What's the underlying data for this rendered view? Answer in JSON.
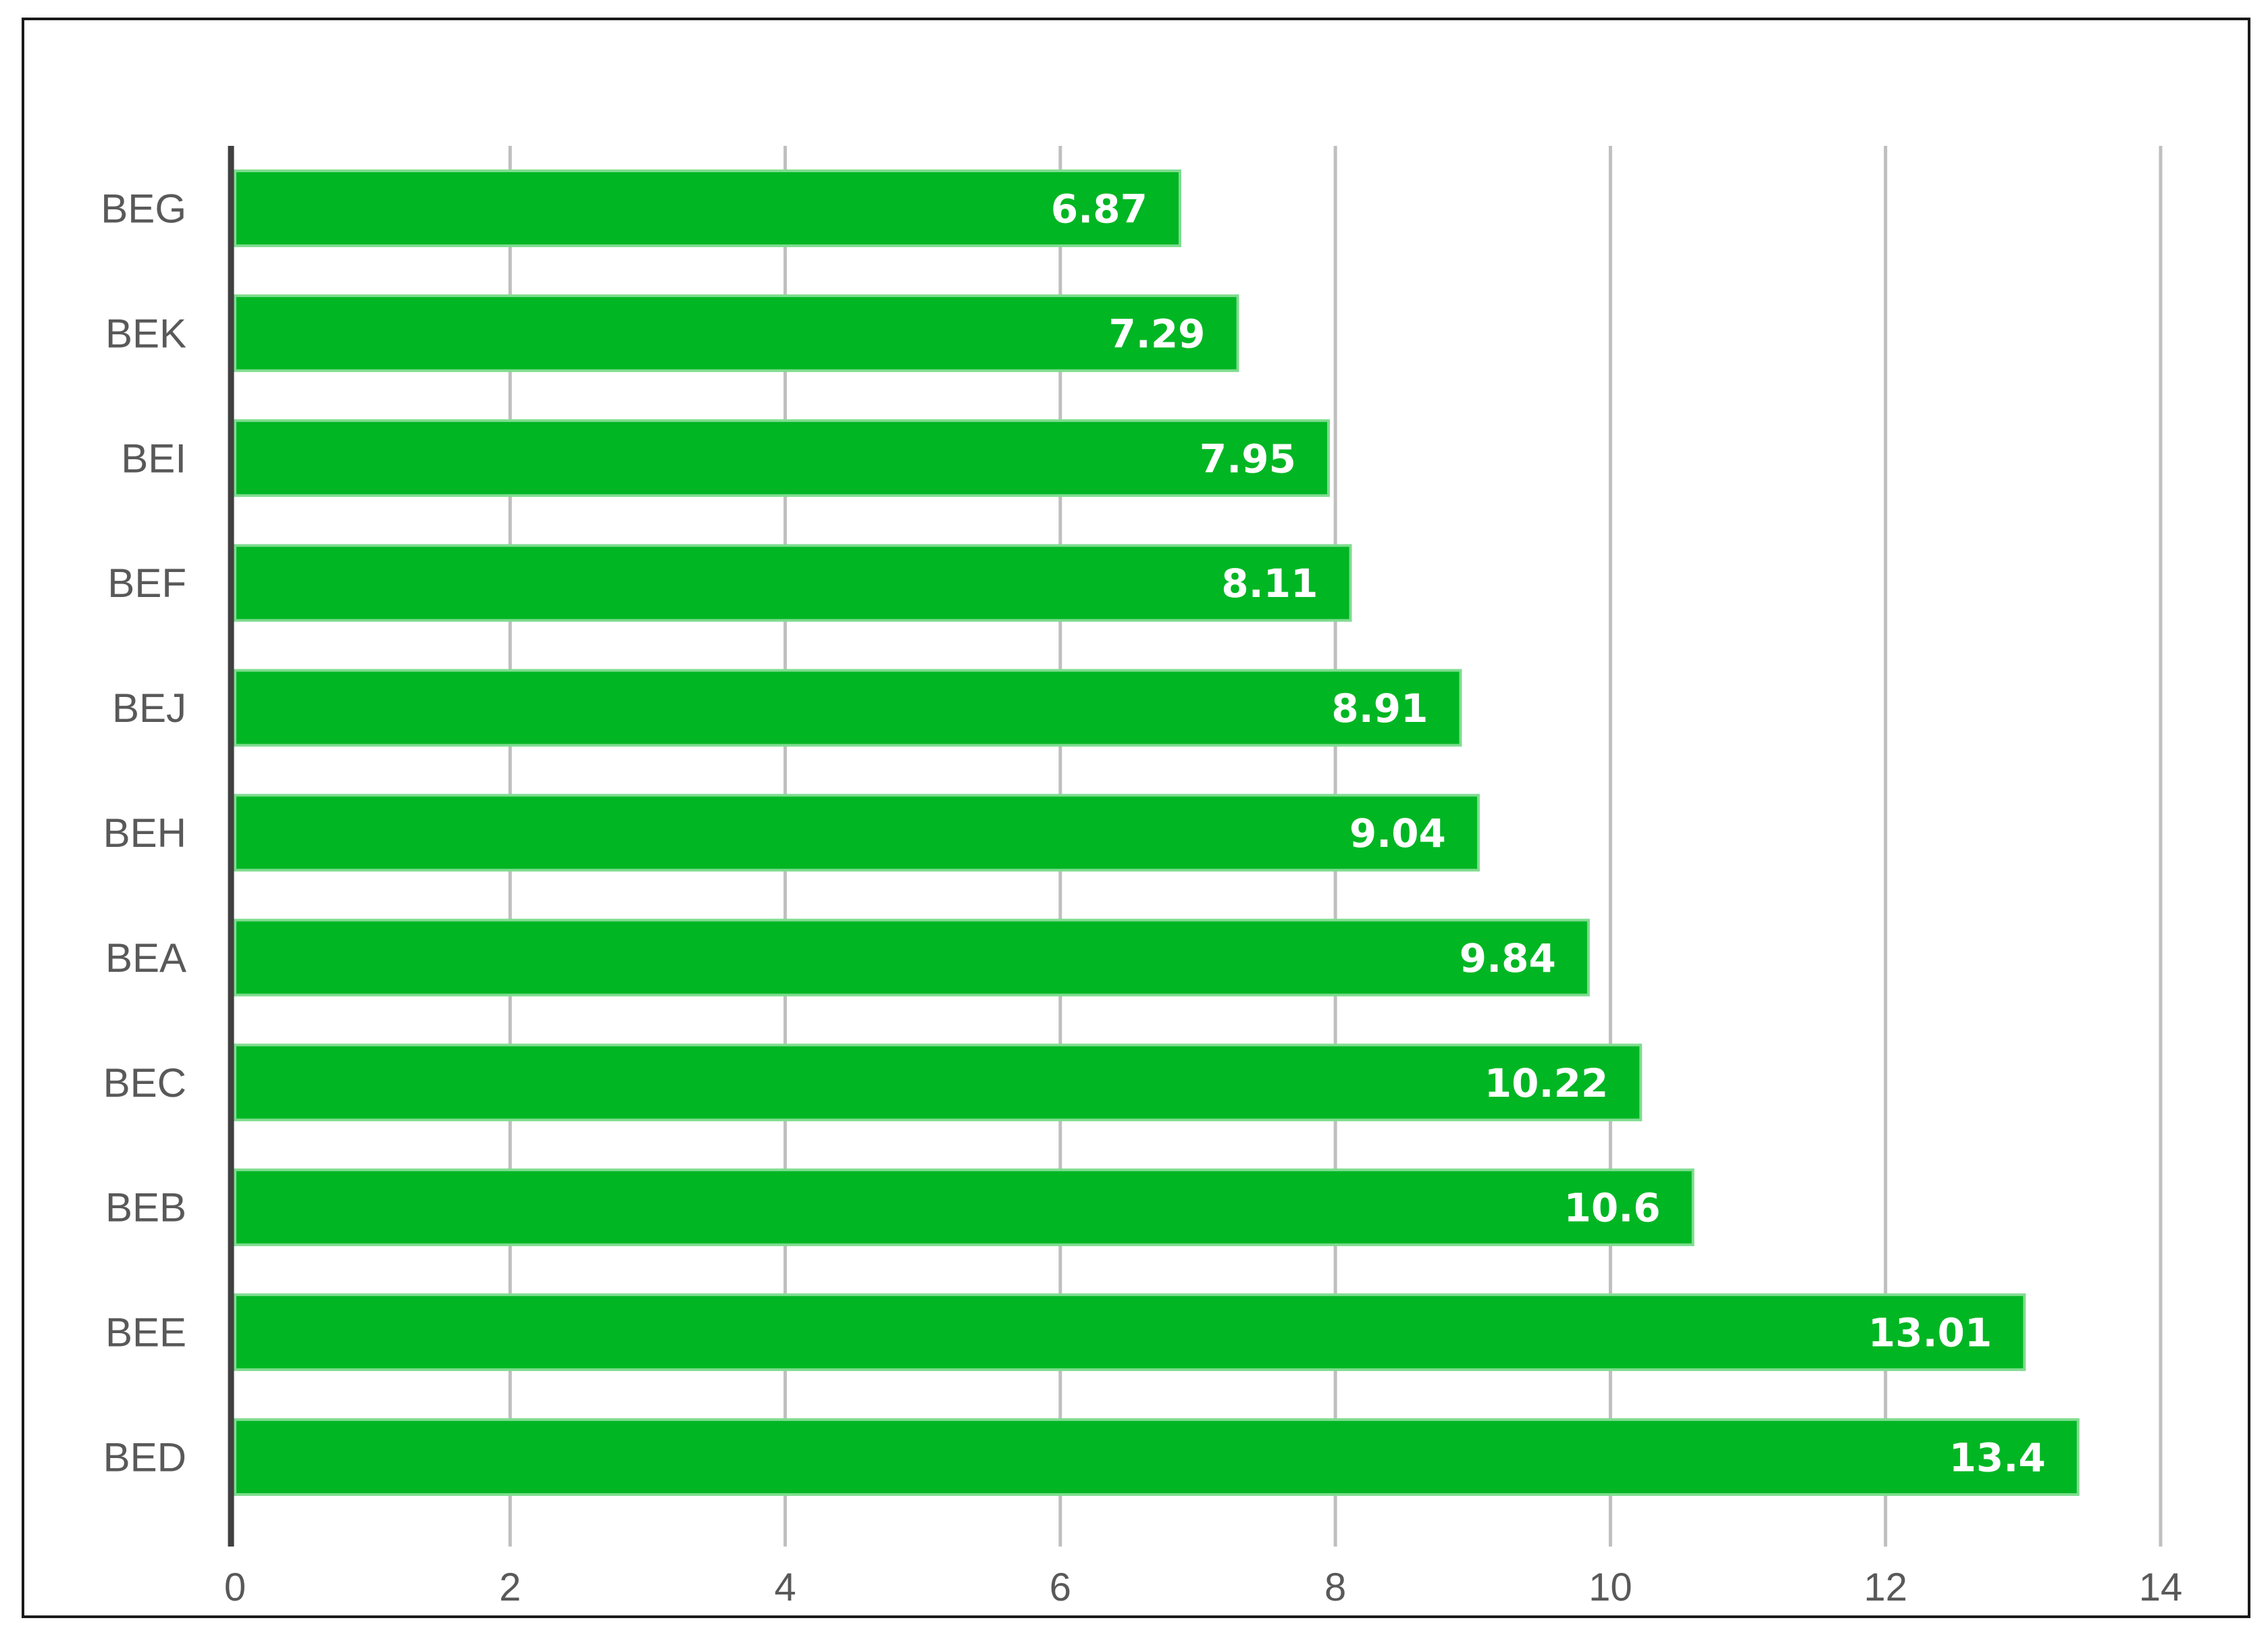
{
  "chart_data": {
    "type": "bar",
    "orientation": "horizontal",
    "categories": [
      "BEG",
      "BEK",
      "BEI",
      "BEF",
      "BEJ",
      "BEH",
      "BEA",
      "BEC",
      "BEB",
      "BEE",
      "BED"
    ],
    "values": [
      6.87,
      7.29,
      7.95,
      8.11,
      8.91,
      9.04,
      9.84,
      10.22,
      10.6,
      13.01,
      13.4
    ],
    "data_labels": [
      "6.87",
      "7.29",
      "7.95",
      "8.11",
      "8.91",
      "9.04",
      "9.84",
      "10.22",
      "10.6",
      "13.01",
      "13.4"
    ],
    "x_ticks": [
      "0",
      "2",
      "4",
      "6",
      "8",
      "10",
      "12",
      "14"
    ],
    "xlim": [
      0,
      14
    ],
    "title": "",
    "xlabel": "",
    "ylabel": "",
    "grid": "vertical",
    "legend": "none",
    "colors": {
      "bar": "#00b623",
      "bar_edge": "#7fdc8f",
      "grid": "#bfbfbf",
      "axis": "#404040",
      "label_text": "#595959"
    }
  }
}
